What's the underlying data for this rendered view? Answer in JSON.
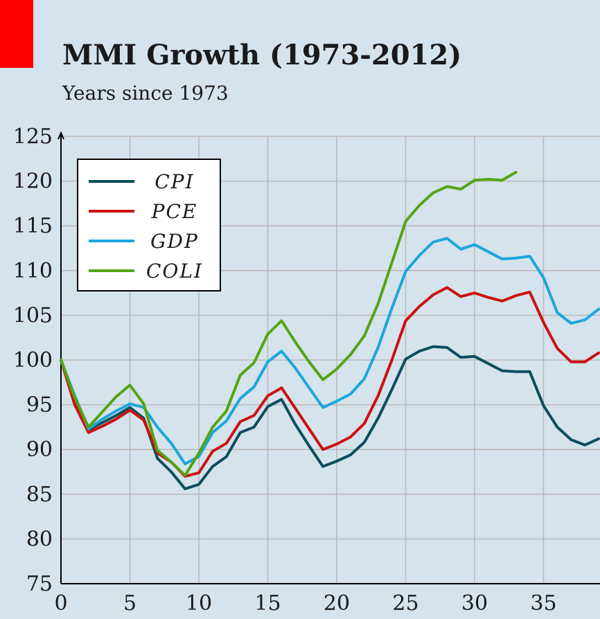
{
  "header": {
    "title": "MMI Growth (1973-2012)",
    "subtitle": "Years since 1973",
    "accent_color": "#ff0000"
  },
  "chart_data": {
    "type": "line",
    "title": "MMI Growth (1973-2012)",
    "subtitle": "Years since 1973",
    "xlabel": "",
    "ylabel": "",
    "xlim": [
      0,
      39
    ],
    "ylim": [
      75,
      125
    ],
    "x_ticks": [
      0,
      5,
      10,
      15,
      20,
      25,
      30,
      35
    ],
    "y_ticks": [
      75,
      80,
      85,
      90,
      95,
      100,
      105,
      110,
      115,
      120,
      125
    ],
    "grid": true,
    "legend_position": "top-left",
    "series": [
      {
        "name": "CPI",
        "color": "#0d4d5e",
        "x": [
          0,
          1,
          2,
          3,
          4,
          5,
          6,
          7,
          8,
          9,
          10,
          11,
          12,
          13,
          14,
          15,
          16,
          17,
          18,
          19,
          20,
          21,
          22,
          23,
          24,
          25,
          26,
          27,
          28,
          29,
          30,
          31,
          32,
          33,
          34,
          35,
          36,
          37,
          38,
          39
        ],
        "values": [
          100,
          95.5,
          92.2,
          93.0,
          93.8,
          94.7,
          93.5,
          89.0,
          87.5,
          85.6,
          86.1,
          88.1,
          89.2,
          91.9,
          92.5,
          94.8,
          95.6,
          92.8,
          90.4,
          88.1,
          88.7,
          89.4,
          90.8,
          93.5,
          96.7,
          100.1,
          101.0,
          101.5,
          101.4,
          100.3,
          100.4,
          99.6,
          98.8,
          98.7,
          98.7,
          94.9,
          92.5,
          91.1,
          90.5,
          91.2
        ]
      },
      {
        "name": "PCE",
        "color": "#cc1111",
        "x": [
          0,
          1,
          2,
          3,
          4,
          5,
          6,
          7,
          8,
          9,
          10,
          11,
          12,
          13,
          14,
          15,
          16,
          17,
          18,
          19,
          20,
          21,
          22,
          23,
          24,
          25,
          26,
          27,
          28,
          29,
          30,
          31,
          32,
          33,
          34,
          35,
          36,
          37,
          38,
          39
        ],
        "values": [
          100,
          95.0,
          91.9,
          92.6,
          93.4,
          94.4,
          93.3,
          89.6,
          88.6,
          87.0,
          87.4,
          89.8,
          90.7,
          93.1,
          93.8,
          96.0,
          96.9,
          94.6,
          92.3,
          90.0,
          90.6,
          91.4,
          92.9,
          96.0,
          100.0,
          104.4,
          106.0,
          107.3,
          108.1,
          107.1,
          107.5,
          107.0,
          106.6,
          107.2,
          107.6,
          104.2,
          101.3,
          99.8,
          99.8,
          100.8
        ]
      },
      {
        "name": "GDP",
        "color": "#1aa7dc",
        "x": [
          0,
          1,
          2,
          3,
          4,
          5,
          6,
          7,
          8,
          9,
          10,
          11,
          12,
          13,
          14,
          15,
          16,
          17,
          18,
          19,
          20,
          21,
          22,
          23,
          24,
          25,
          26,
          27,
          28,
          29,
          30,
          31,
          32,
          33,
          34,
          35,
          36,
          37,
          38,
          39
        ],
        "values": [
          100,
          96.0,
          92.3,
          93.4,
          94.3,
          95.1,
          94.7,
          92.5,
          90.7,
          88.4,
          89.2,
          91.9,
          93.2,
          95.7,
          97.0,
          99.8,
          101.0,
          99.1,
          96.9,
          94.7,
          95.4,
          96.2,
          97.9,
          101.4,
          105.8,
          109.9,
          111.7,
          113.2,
          113.6,
          112.4,
          112.9,
          112.1,
          111.3,
          111.4,
          111.6,
          109.2,
          105.3,
          104.1,
          104.5,
          105.7
        ]
      },
      {
        "name": "COLI",
        "color": "#55a314",
        "x": [
          0,
          1,
          2,
          3,
          4,
          5,
          6,
          7,
          8,
          9,
          10,
          11,
          12,
          13,
          14,
          15,
          16,
          17,
          18,
          19,
          20,
          21,
          22,
          23,
          24,
          25,
          26,
          27,
          28,
          29,
          30,
          31,
          32,
          33
        ],
        "values": [
          100,
          95.8,
          92.5,
          94.2,
          95.9,
          97.2,
          95.1,
          89.9,
          88.6,
          87.1,
          89.6,
          92.5,
          94.3,
          98.3,
          99.7,
          102.9,
          104.4,
          102.0,
          99.8,
          97.8,
          99.0,
          100.6,
          102.7,
          106.3,
          110.9,
          115.5,
          117.3,
          118.7,
          119.4,
          119.1,
          120.1,
          120.2,
          120.1,
          121.0
        ]
      }
    ]
  }
}
